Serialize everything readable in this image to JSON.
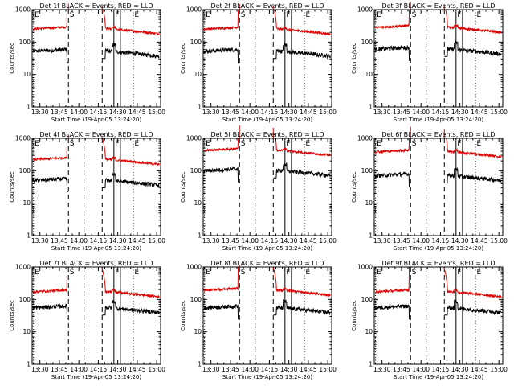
{
  "colors": {
    "events": "#000000",
    "lld": "#e00000",
    "axes": "#000000",
    "background": "#ffffff"
  },
  "chart_data": [
    {
      "type": "line",
      "title": "Det 1f  BLACK = Events, RED = LLD",
      "xlabel": "Start Time (19-Apr-05 13:24:20)",
      "ylabel": "Counts/sec",
      "yscale": "log",
      "ylim": [
        1,
        1000
      ],
      "xlim": [
        "13:24",
        "15:03"
      ],
      "xticks": [
        "13:30",
        "13:45",
        "14:00",
        "14:15",
        "14:30",
        "14:45",
        "15:00"
      ],
      "yticks": [
        "1",
        "10",
        "100",
        "1000"
      ],
      "markers": [
        {
          "label": "E",
          "time": "13:25",
          "style": "dotted"
        },
        {
          "label": "S",
          "time": "13:52",
          "style": "dashed"
        },
        {
          "label": "",
          "time": "14:04",
          "style": "dashed"
        },
        {
          "label": "",
          "time": "14:18",
          "style": "dashed"
        },
        {
          "label": "F",
          "time": "14:27",
          "style": "solid"
        },
        {
          "label": "",
          "time": "14:32",
          "style": "solid"
        },
        {
          "label": "E",
          "time": "14:42",
          "style": "dotted"
        }
      ],
      "series": [
        {
          "name": "Events",
          "color": "#000000",
          "base": 52
        },
        {
          "name": "LLD",
          "color": "#e00000",
          "base": 255
        }
      ]
    },
    {
      "type": "line",
      "title": "Det 2f  BLACK = Events, RED = LLD",
      "xlabel": "Start Time (19-Apr-05 13:24:20)",
      "ylabel": "Counts/sec",
      "yscale": "log",
      "ylim": [
        1,
        1000
      ],
      "xlim": [
        "13:24",
        "15:03"
      ],
      "xticks": [
        "13:30",
        "13:45",
        "14:00",
        "14:15",
        "14:30",
        "14:45",
        "15:00"
      ],
      "yticks": [
        "1",
        "10",
        "100",
        "1000"
      ],
      "markers": [
        {
          "label": "E",
          "time": "13:25",
          "style": "dotted"
        },
        {
          "label": "S",
          "time": "13:52",
          "style": "dashed"
        },
        {
          "label": "",
          "time": "14:04",
          "style": "dashed"
        },
        {
          "label": "",
          "time": "14:18",
          "style": "dashed"
        },
        {
          "label": "F",
          "time": "14:27",
          "style": "solid"
        },
        {
          "label": "",
          "time": "14:32",
          "style": "solid"
        },
        {
          "label": "E",
          "time": "14:42",
          "style": "dotted"
        }
      ],
      "series": [
        {
          "name": "Events",
          "color": "#000000",
          "base": 52
        },
        {
          "name": "LLD",
          "color": "#e00000",
          "base": 250
        }
      ]
    },
    {
      "type": "line",
      "title": "Det 3f  BLACK = Events, RED = LLD",
      "xlabel": "Start Time (19-Apr-05 13:24:20)",
      "ylabel": "Counts/sec",
      "yscale": "log",
      "ylim": [
        1,
        1000
      ],
      "xlim": [
        "13:24",
        "15:03"
      ],
      "xticks": [
        "13:30",
        "13:45",
        "14:00",
        "14:15",
        "14:30",
        "14:45",
        "15:00"
      ],
      "yticks": [
        "1",
        "10",
        "100",
        "1000"
      ],
      "markers": [
        {
          "label": "E",
          "time": "13:25",
          "style": "dotted"
        },
        {
          "label": "S",
          "time": "13:52",
          "style": "dashed"
        },
        {
          "label": "",
          "time": "14:04",
          "style": "dashed"
        },
        {
          "label": "",
          "time": "14:18",
          "style": "dashed"
        },
        {
          "label": "F",
          "time": "14:27",
          "style": "solid"
        },
        {
          "label": "",
          "time": "14:32",
          "style": "solid"
        },
        {
          "label": "E",
          "time": "14:42",
          "style": "dotted"
        }
      ],
      "series": [
        {
          "name": "Events",
          "color": "#000000",
          "base": 60
        },
        {
          "name": "LLD",
          "color": "#e00000",
          "base": 280
        }
      ]
    },
    {
      "type": "line",
      "title": "Det 4f  BLACK = Events, RED = LLD",
      "xlabel": "Start Time (19-Apr-05 13:24:20)",
      "ylabel": "Counts/sec",
      "yscale": "log",
      "ylim": [
        1,
        1000
      ],
      "xlim": [
        "13:24",
        "15:03"
      ],
      "xticks": [
        "13:30",
        "13:45",
        "14:00",
        "14:15",
        "14:30",
        "14:45",
        "15:00"
      ],
      "yticks": [
        "1",
        "10",
        "100",
        "1000"
      ],
      "markers": [
        {
          "label": "E",
          "time": "13:25",
          "style": "dotted"
        },
        {
          "label": "S",
          "time": "13:52",
          "style": "dashed"
        },
        {
          "label": "",
          "time": "14:04",
          "style": "dashed"
        },
        {
          "label": "",
          "time": "14:18",
          "style": "dashed"
        },
        {
          "label": "F",
          "time": "14:27",
          "style": "solid"
        },
        {
          "label": "",
          "time": "14:32",
          "style": "solid"
        },
        {
          "label": "E",
          "time": "14:42",
          "style": "dotted"
        }
      ],
      "series": [
        {
          "name": "Events",
          "color": "#000000",
          "base": 50
        },
        {
          "name": "LLD",
          "color": "#e00000",
          "base": 220
        }
      ]
    },
    {
      "type": "line",
      "title": "Det 5f  BLACK = Events, RED = LLD",
      "xlabel": "Start Time (19-Apr-05 13:24:20)",
      "ylabel": "Counts/sec",
      "yscale": "log",
      "ylim": [
        1,
        1000
      ],
      "xlim": [
        "13:24",
        "15:03"
      ],
      "xticks": [
        "13:30",
        "13:45",
        "14:00",
        "14:15",
        "14:30",
        "14:45",
        "15:00"
      ],
      "yticks": [
        "1",
        "10",
        "100",
        "1000"
      ],
      "markers": [
        {
          "label": "E",
          "time": "13:25",
          "style": "dotted"
        },
        {
          "label": "S",
          "time": "13:52",
          "style": "dashed"
        },
        {
          "label": "",
          "time": "14:04",
          "style": "dashed"
        },
        {
          "label": "",
          "time": "14:18",
          "style": "dashed"
        },
        {
          "label": "F",
          "time": "14:27",
          "style": "solid"
        },
        {
          "label": "",
          "time": "14:32",
          "style": "solid"
        },
        {
          "label": "E",
          "time": "14:42",
          "style": "dotted"
        }
      ],
      "series": [
        {
          "name": "Events",
          "color": "#000000",
          "base": 100
        },
        {
          "name": "LLD",
          "color": "#e00000",
          "base": 420
        }
      ]
    },
    {
      "type": "line",
      "title": "Det 6f  BLACK = Events, RED = LLD",
      "xlabel": "Start Time (19-Apr-05 13:24:20)",
      "ylabel": "Counts/sec",
      "yscale": "log",
      "ylim": [
        1,
        1000
      ],
      "xlim": [
        "13:24",
        "15:03"
      ],
      "xticks": [
        "13:30",
        "13:45",
        "14:00",
        "14:15",
        "14:30",
        "14:45",
        "15:00"
      ],
      "yticks": [
        "1",
        "10",
        "100",
        "1000"
      ],
      "markers": [
        {
          "label": "E",
          "time": "13:25",
          "style": "dotted"
        },
        {
          "label": "S",
          "time": "13:52",
          "style": "dashed"
        },
        {
          "label": "",
          "time": "14:04",
          "style": "dashed"
        },
        {
          "label": "",
          "time": "14:18",
          "style": "dashed"
        },
        {
          "label": "F",
          "time": "14:27",
          "style": "solid"
        },
        {
          "label": "",
          "time": "14:32",
          "style": "solid"
        },
        {
          "label": "E",
          "time": "14:42",
          "style": "dotted"
        }
      ],
      "series": [
        {
          "name": "Events",
          "color": "#000000",
          "base": 70
        },
        {
          "name": "LLD",
          "color": "#e00000",
          "base": 380
        }
      ]
    },
    {
      "type": "line",
      "title": "Det 7f  BLACK = Events, RED = LLD",
      "xlabel": "Start Time (19-Apr-05 13:24:20)",
      "ylabel": "Counts/sec",
      "yscale": "log",
      "ylim": [
        1,
        1000
      ],
      "xlim": [
        "13:24",
        "15:03"
      ],
      "xticks": [
        "13:30",
        "13:45",
        "14:00",
        "14:15",
        "14:30",
        "14:45",
        "15:00"
      ],
      "yticks": [
        "1",
        "10",
        "100",
        "1000"
      ],
      "markers": [
        {
          "label": "E",
          "time": "13:25",
          "style": "dotted"
        },
        {
          "label": "S",
          "time": "13:52",
          "style": "dashed"
        },
        {
          "label": "",
          "time": "14:04",
          "style": "dashed"
        },
        {
          "label": "",
          "time": "14:18",
          "style": "dashed"
        },
        {
          "label": "F",
          "time": "14:27",
          "style": "solid"
        },
        {
          "label": "",
          "time": "14:32",
          "style": "solid"
        },
        {
          "label": "E",
          "time": "14:42",
          "style": "dotted"
        }
      ],
      "series": [
        {
          "name": "Events",
          "color": "#000000",
          "base": 55
        },
        {
          "name": "LLD",
          "color": "#e00000",
          "base": 170
        }
      ]
    },
    {
      "type": "line",
      "title": "Det 8f  BLACK = Events, RED = LLD",
      "xlabel": "Start Time (19-Apr-05 13:24:20)",
      "ylabel": "Counts/sec",
      "yscale": "log",
      "ylim": [
        1,
        1000
      ],
      "xlim": [
        "13:24",
        "15:03"
      ],
      "xticks": [
        "13:30",
        "13:45",
        "14:00",
        "14:15",
        "14:30",
        "14:45",
        "15:00"
      ],
      "yticks": [
        "1",
        "10",
        "100",
        "1000"
      ],
      "markers": [
        {
          "label": "E",
          "time": "13:25",
          "style": "dotted"
        },
        {
          "label": "S",
          "time": "13:52",
          "style": "dashed"
        },
        {
          "label": "",
          "time": "14:04",
          "style": "dashed"
        },
        {
          "label": "",
          "time": "14:18",
          "style": "dashed"
        },
        {
          "label": "F",
          "time": "14:27",
          "style": "solid"
        },
        {
          "label": "",
          "time": "14:32",
          "style": "solid"
        },
        {
          "label": "E",
          "time": "14:42",
          "style": "dotted"
        }
      ],
      "series": [
        {
          "name": "Events",
          "color": "#000000",
          "base": 55
        },
        {
          "name": "LLD",
          "color": "#e00000",
          "base": 190
        }
      ]
    },
    {
      "type": "line",
      "title": "Det 9f  BLACK = Events, RED = LLD",
      "xlabel": "Start Time (19-Apr-05 13:24:20)",
      "ylabel": "Counts/sec",
      "yscale": "log",
      "ylim": [
        1,
        1000
      ],
      "xlim": [
        "13:24",
        "15:03"
      ],
      "xticks": [
        "13:30",
        "13:45",
        "14:00",
        "14:15",
        "14:30",
        "14:45",
        "15:00"
      ],
      "yticks": [
        "1",
        "10",
        "100",
        "1000"
      ],
      "markers": [
        {
          "label": "E",
          "time": "13:25",
          "style": "dotted"
        },
        {
          "label": "S",
          "time": "13:52",
          "style": "dashed"
        },
        {
          "label": "",
          "time": "14:04",
          "style": "dashed"
        },
        {
          "label": "",
          "time": "14:18",
          "style": "dashed"
        },
        {
          "label": "F",
          "time": "14:27",
          "style": "solid"
        },
        {
          "label": "",
          "time": "14:32",
          "style": "solid"
        },
        {
          "label": "E",
          "time": "14:42",
          "style": "dotted"
        }
      ],
      "series": [
        {
          "name": "Events",
          "color": "#000000",
          "base": 55
        },
        {
          "name": "LLD",
          "color": "#e00000",
          "base": 170
        }
      ]
    }
  ]
}
